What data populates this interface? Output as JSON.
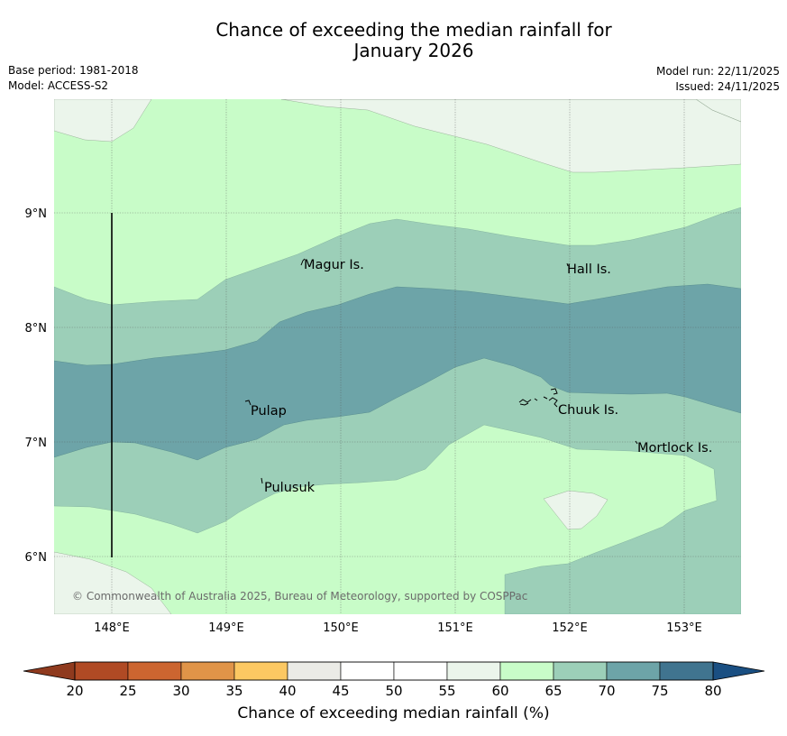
{
  "title": {
    "line1": "Chance of exceeding the median rainfall for",
    "line2": "January 2026"
  },
  "info_left": {
    "base_period": "Base period: 1981-2018",
    "model": "Model: ACCESS-S2"
  },
  "info_right": {
    "model_run": "Model run: 22/11/2025",
    "issued": "Issued: 24/11/2025"
  },
  "map": {
    "lat_labels": [
      "9°N",
      "8°N",
      "7°N",
      "6°N"
    ],
    "lon_labels": [
      "148°E",
      "149°E",
      "150°E",
      "151°E",
      "152°E",
      "153°E"
    ],
    "places": [
      "Magur Is.",
      "Hall Is.",
      "Pulap",
      "Chuuk Is.",
      "Mortlock Is.",
      "Pulusuk"
    ],
    "copyright": "© Commonwealth of Australia 2025, Bureau of Meteorology, supported by COSPPac"
  },
  "colorbar": {
    "ticks": [
      "20",
      "25",
      "30",
      "35",
      "40",
      "45",
      "50",
      "55",
      "60",
      "65",
      "70",
      "75",
      "80"
    ],
    "colors": [
      "#b04a24",
      "#cc6530",
      "#e09448",
      "#fcc862",
      "#ebebe6",
      "#ffffff",
      "#ffffff",
      "#ebf5eb",
      "#c8fcc8",
      "#9ccfb8",
      "#6da4a8",
      "#40748f"
    ],
    "under_color": "#8f3a1e",
    "over_color": "#1a4f82",
    "label": "Chance of exceeding median rainfall (%)"
  },
  "legend_colors": {
    "c55_60": "#ebf5eb",
    "c60_65": "#c8fcc8",
    "c65_70": "#9ccfb8",
    "c70_75": "#6da4a8"
  }
}
